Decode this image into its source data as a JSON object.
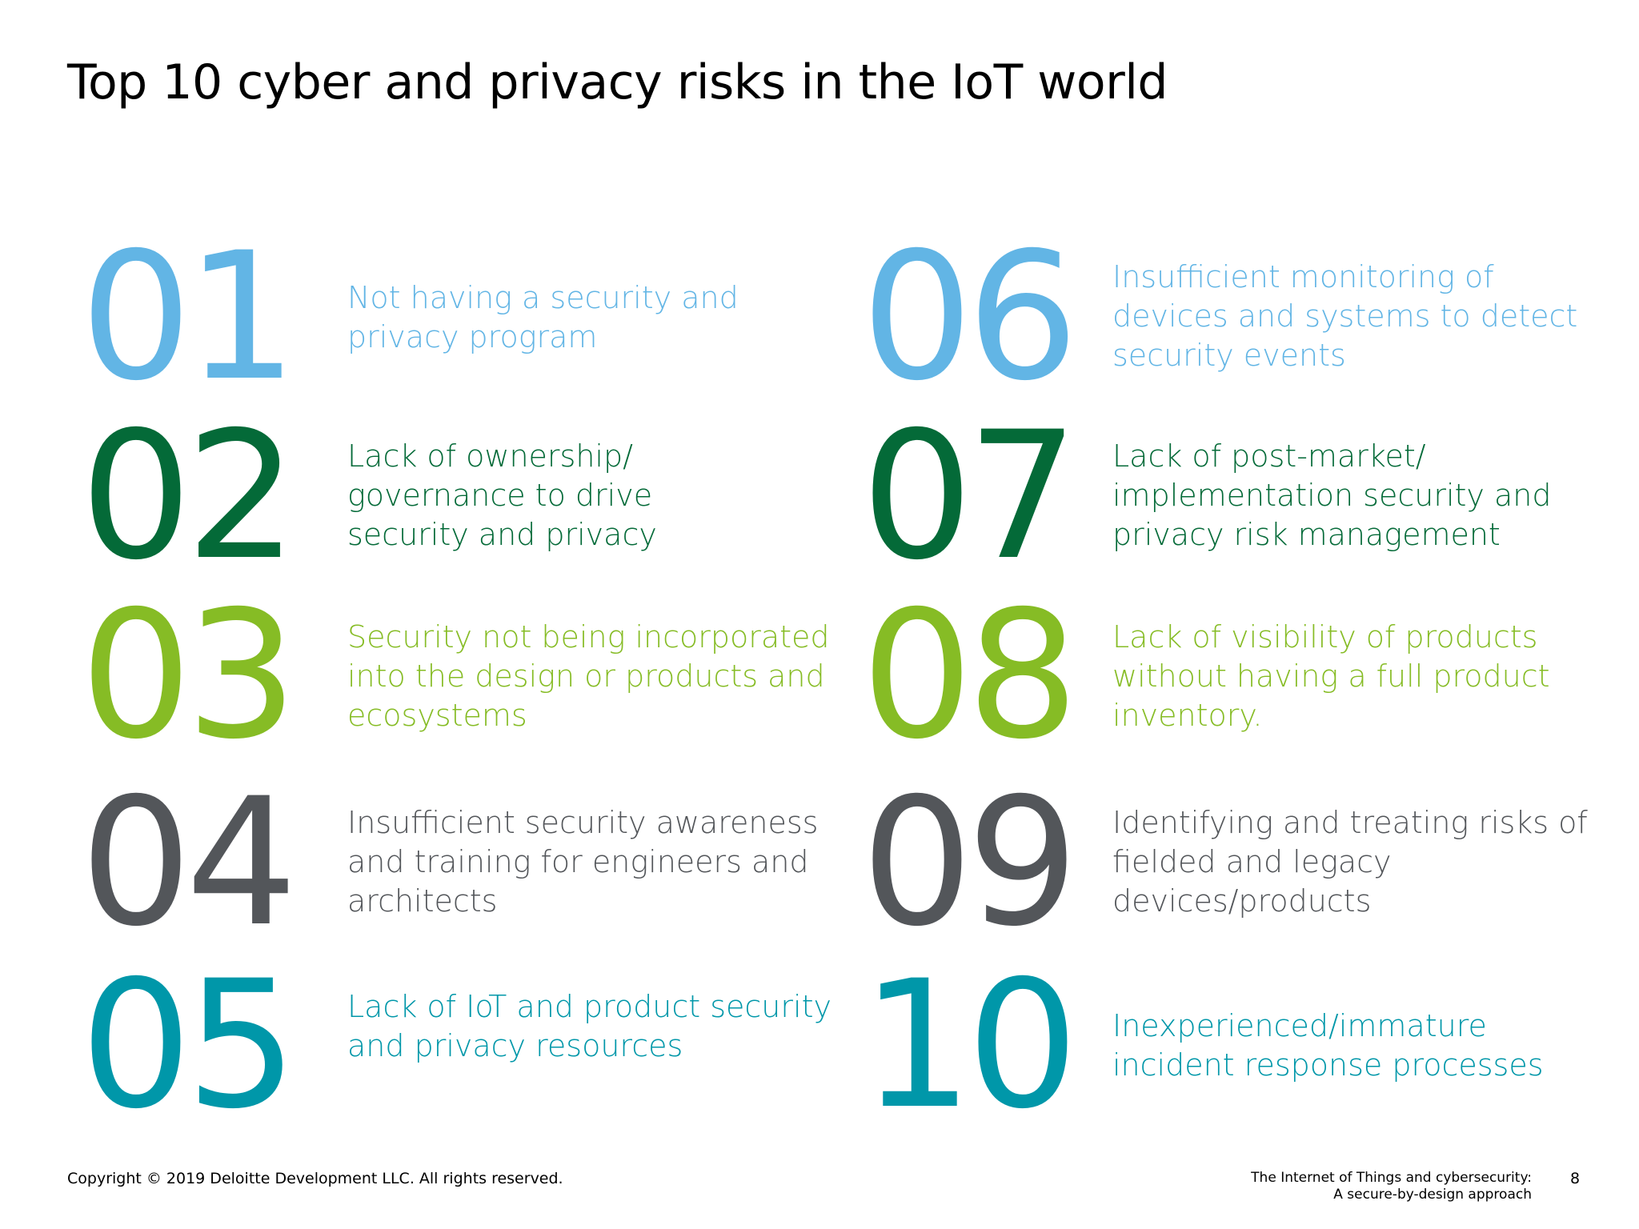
{
  "title": "Top 10 cyber and privacy risks in the IoT world",
  "colors": {
    "light_blue": "#62b5e5",
    "dark_green": "#046a38",
    "lime_green": "#86bc25",
    "dark_gray": "#53565a",
    "teal": "#0097a9"
  },
  "risks": [
    {
      "number": "01",
      "text": "Not having a security and\nprivacy program",
      "color": "#62b5e5"
    },
    {
      "number": "02",
      "text": "Lack of ownership/\ngovernance to drive\nsecurity and privacy",
      "color": "#046a38"
    },
    {
      "number": "03",
      "text": "Security not being incorporated\ninto the design or products and\necosystems",
      "color": "#86bc25"
    },
    {
      "number": "04",
      "text": "Insufficient security awareness\nand training for engineers and\narchitects",
      "color": "#53565a"
    },
    {
      "number": "05",
      "text": "Lack of IoT and product security\nand privacy resources",
      "color": "#0097a9"
    },
    {
      "number": "06",
      "text": "Insufficient monitoring of\ndevices and systems to detect\nsecurity events",
      "color": "#62b5e5"
    },
    {
      "number": "07",
      "text": "Lack of post-market/\nimplementation security and\nprivacy risk management",
      "color": "#046a38"
    },
    {
      "number": "08",
      "text": "Lack of visibility of products\nwithout having a full product\ninventory.",
      "color": "#86bc25"
    },
    {
      "number": "09",
      "text": "Identifying and treating risks of\nfielded and legacy\ndevices/products",
      "color": "#53565a"
    },
    {
      "number": "10",
      "text": "Inexperienced/immature\nincident response processes",
      "color": "#0097a9"
    }
  ],
  "footer": {
    "copyright": "Copyright © 2019 Deloitte Development LLC. All rights reserved.",
    "document_title": "The Internet of Things and cybersecurity:\nA secure-by-design approach",
    "page_number": "8"
  }
}
